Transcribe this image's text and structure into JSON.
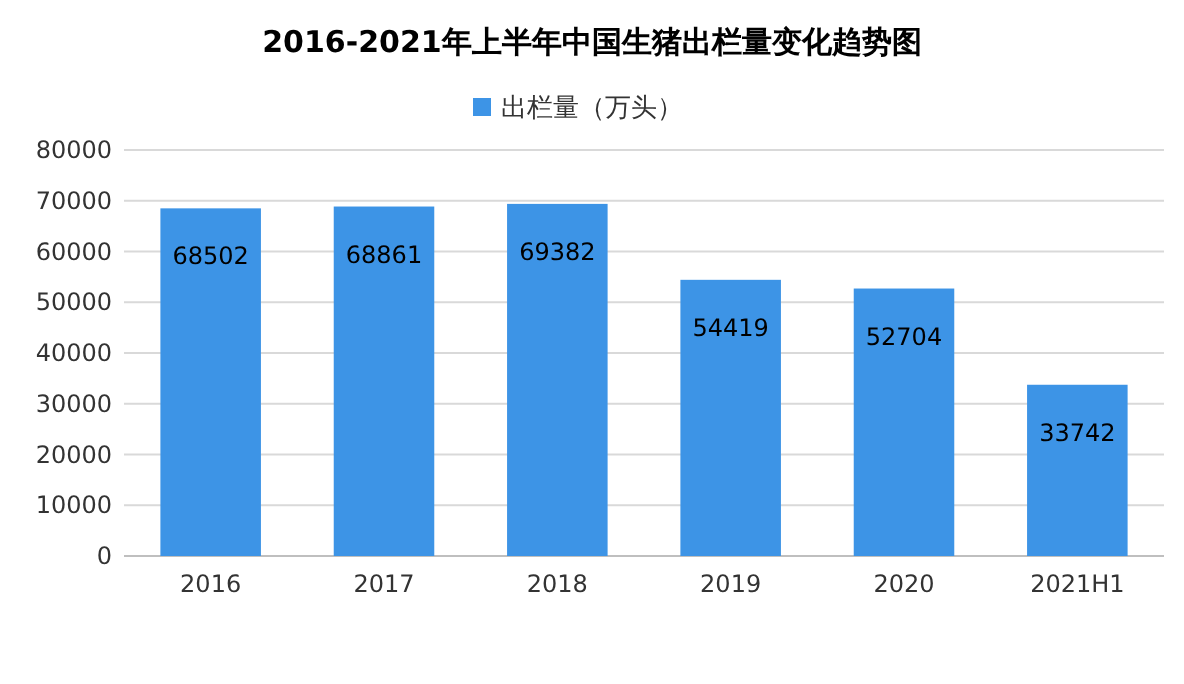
{
  "chart_data": {
    "type": "bar",
    "title": "2016-2021年上半年中国生猪出栏量变化趋势图",
    "categories": [
      "2016",
      "2017",
      "2018",
      "2019",
      "2020",
      "2021H1"
    ],
    "series": [
      {
        "name": "出栏量（万头）",
        "color": "#3d94e6",
        "values": [
          68502,
          68861,
          69382,
          54419,
          52704,
          33742
        ]
      }
    ],
    "ylim": [
      0,
      80000
    ],
    "yticks": [
      0,
      10000,
      20000,
      30000,
      40000,
      50000,
      60000,
      70000,
      80000
    ],
    "grid": "y",
    "legend": "top",
    "data_labels": true
  }
}
